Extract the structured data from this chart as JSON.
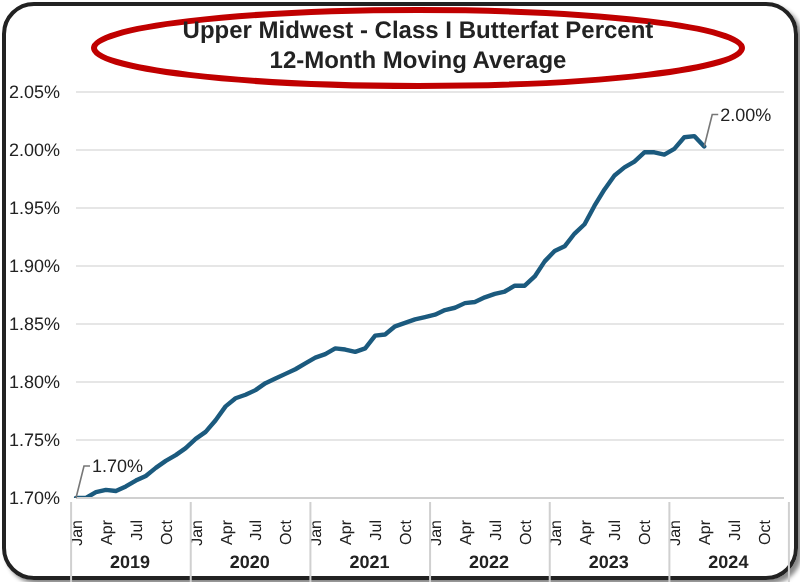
{
  "chart_data": {
    "type": "line",
    "title": "Upper Midwest - Class I Butterfat Percent",
    "subtitle": "12-Month Moving Average",
    "categories": [
      "Jan",
      null,
      null,
      "Apr",
      null,
      null,
      "Jul",
      null,
      null,
      "Oct",
      null,
      null,
      "Jan",
      null,
      null,
      "Apr",
      null,
      null,
      "Jul",
      null,
      null,
      "Oct",
      null,
      null,
      "Jan",
      null,
      null,
      "Apr",
      null,
      null,
      "Jul",
      null,
      null,
      "Oct",
      null,
      null,
      "Jan",
      null,
      null,
      "Apr",
      null,
      null,
      "Jul",
      null,
      null,
      "Oct",
      null,
      null,
      "Jan",
      null,
      null,
      "Apr",
      null,
      null,
      "Jul",
      null,
      null,
      "Oct",
      null,
      null,
      "Jan",
      null,
      null,
      "Apr",
      null,
      null,
      "Jul",
      null,
      null,
      "Oct",
      null,
      null
    ],
    "annotations": [
      "2019",
      "2020",
      "2021",
      "2022",
      "2023",
      "2024"
    ],
    "series": [
      {
        "color": "#1b5a7e",
        "values": [
          1.7,
          1.7,
          1.705,
          1.707,
          1.706,
          1.71,
          1.715,
          1.719,
          1.726,
          1.732,
          1.737,
          1.743,
          1.751,
          1.757,
          1.767,
          1.779,
          1.786,
          1.789,
          1.793,
          1.799,
          1.803,
          1.807,
          1.811,
          1.816,
          1.821,
          1.824,
          1.829,
          1.828,
          1.826,
          1.829,
          1.84,
          1.841,
          1.848,
          1.851,
          1.854,
          1.856,
          1.858,
          1.862,
          1.864,
          1.868,
          1.869,
          1.873,
          1.876,
          1.878,
          1.883,
          1.883,
          1.891,
          1.904,
          1.913,
          1.917,
          1.928,
          1.936,
          1.952,
          1.966,
          1.978,
          1.985,
          1.99,
          1.998,
          1.998,
          1.996,
          2.001,
          2.011,
          2.012,
          2.003,
          null,
          null,
          null,
          null,
          null,
          null,
          null,
          null
        ],
        "value_labels": [
          "1.70%",
          null,
          null,
          null,
          null,
          null,
          null,
          null,
          null,
          null,
          null,
          null,
          null,
          null,
          null,
          null,
          null,
          null,
          null,
          null,
          null,
          null,
          null,
          null,
          null,
          null,
          null,
          null,
          null,
          null,
          null,
          null,
          null,
          null,
          null,
          null,
          null,
          null,
          null,
          null,
          null,
          null,
          null,
          null,
          null,
          null,
          null,
          null,
          null,
          null,
          null,
          null,
          null,
          null,
          null,
          null,
          null,
          null,
          null,
          null,
          null,
          null,
          null,
          "2.00%",
          null,
          null,
          null,
          null,
          null,
          null,
          null,
          null
        ]
      }
    ],
    "ylim": [
      1.7,
      2.05
    ],
    "yticks": [
      {
        "value": 1.7,
        "label": "1.70%"
      },
      {
        "value": 1.75,
        "label": "1.75%"
      },
      {
        "value": 1.8,
        "label": "1.80%"
      },
      {
        "value": 1.85,
        "label": "1.85%"
      },
      {
        "value": 1.9,
        "label": "1.90%"
      },
      {
        "value": 1.95,
        "label": "1.95%"
      },
      {
        "value": 2.0,
        "label": "2.00%"
      },
      {
        "value": 2.05,
        "label": "2.05%"
      }
    ],
    "grid": "y",
    "legend": false,
    "marker": "none",
    "line_style": "solid"
  }
}
